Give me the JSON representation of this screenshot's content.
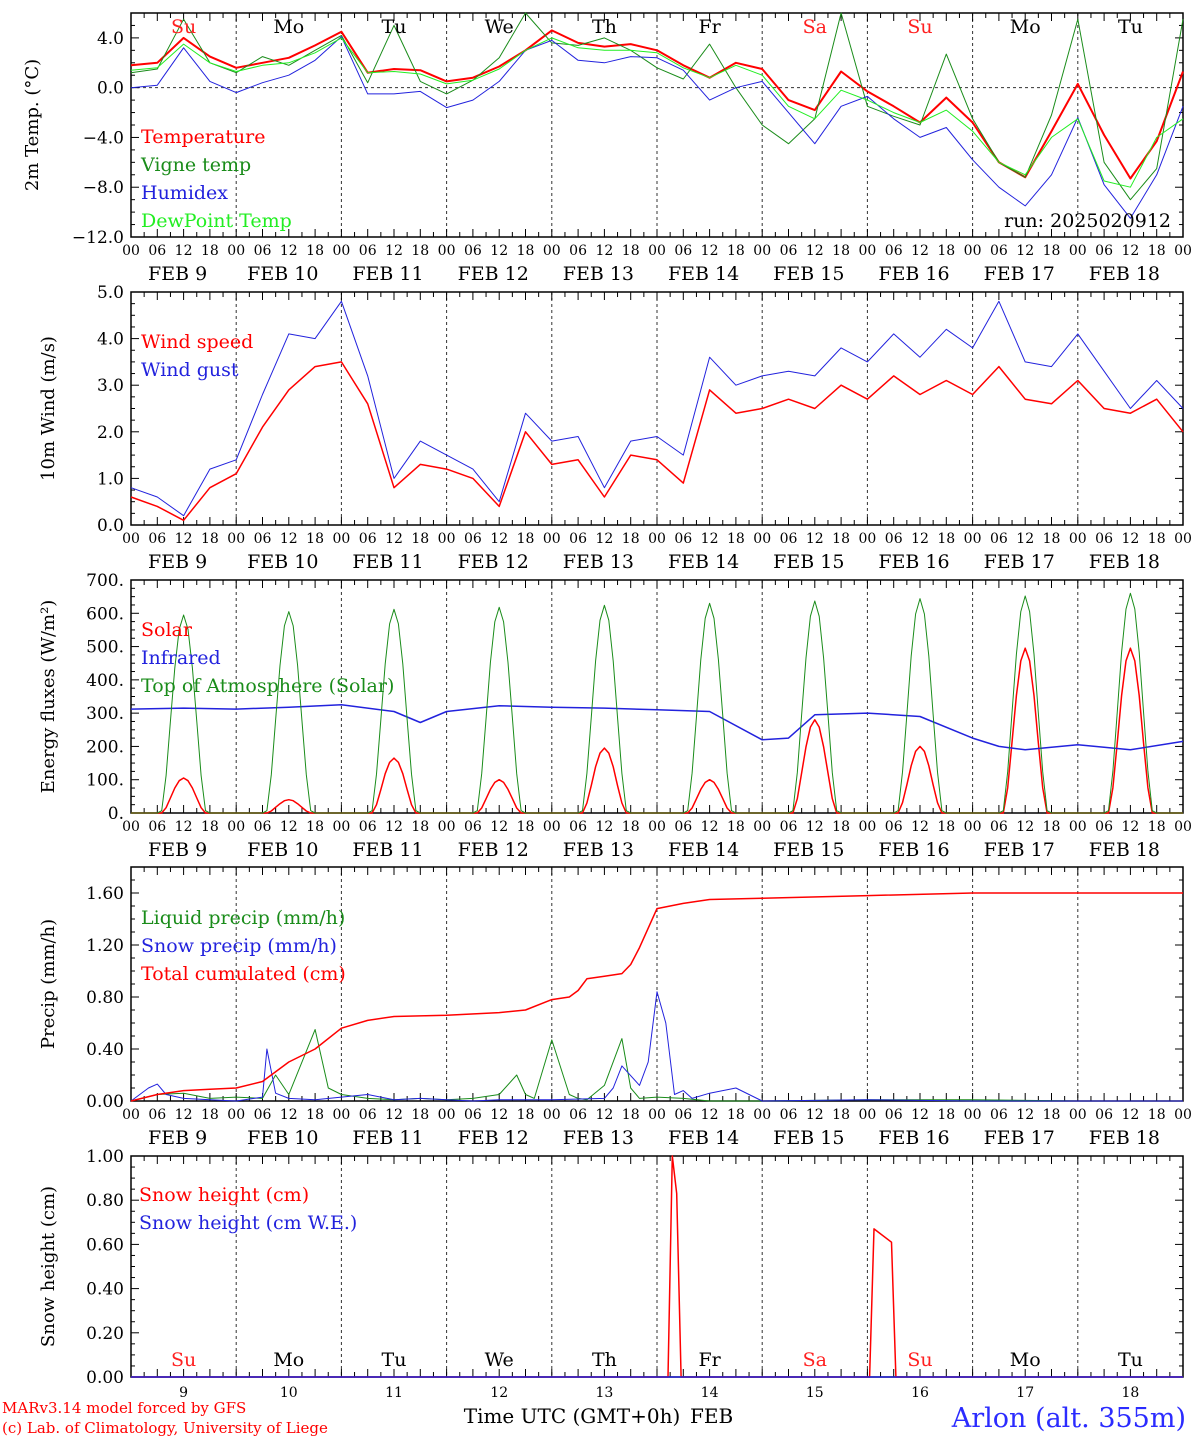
{
  "time_axis": {
    "hour_ticks": [
      "00",
      "06",
      "12",
      "18"
    ],
    "final_tick": "00",
    "date_labels": [
      "FEB  9",
      "FEB 10",
      "FEB 11",
      "FEB 12",
      "FEB 13",
      "FEB 14",
      "FEB 15",
      "FEB 16",
      "FEB 17",
      "FEB 18"
    ],
    "day_numbers": [
      "9",
      "10",
      "11",
      "12",
      "13",
      "14",
      "15",
      "16",
      "17",
      "18"
    ],
    "weekdays": [
      "Su",
      "Mo",
      "Tu",
      "We",
      "Th",
      "Fr",
      "Sa",
      "Su",
      "Mo",
      "Tu"
    ],
    "weekend_days": [
      0,
      6,
      7
    ],
    "weekend_color": "#ff2020",
    "weekday_color": "#000000",
    "xlabel": "Time UTC (GMT+0h)",
    "month": "FEB"
  },
  "footer": {
    "model_line": "MARv3.14 model forced by GFS",
    "credit_line": "(c) Lab. of Climatology, University of Liege",
    "station": "Arlon (alt. 355m)"
  },
  "colors": {
    "red": "#ff0000",
    "green": "#1a8c1a",
    "blue": "#2222dd",
    "lightgreen": "#22ee22"
  },
  "chart_data": [
    {
      "id": "temperature",
      "type": "line",
      "ylabel": "2m Temp. (°C)",
      "ylim": [
        -12,
        6
      ],
      "ytick_values": [
        -12,
        -8,
        -4,
        0,
        4
      ],
      "ytick_labels": [
        "−12.0",
        "−8.0",
        "−4.0",
        "0.0",
        "4.0"
      ],
      "zero_line": true,
      "annotation": "run: 2025020912",
      "show_weekdays_top": true,
      "x_unit": "hours since Feb 9 00 UTC",
      "series": [
        {
          "name": "Temperature",
          "color": "#ff0000",
          "width": 2,
          "x": [
            0,
            6,
            12,
            18,
            24,
            30,
            36,
            42,
            48,
            54,
            60,
            66,
            72,
            78,
            84,
            90,
            96,
            102,
            108,
            114,
            120,
            126,
            132,
            138,
            144,
            150,
            156,
            162,
            168,
            174,
            180,
            186,
            192,
            198,
            204,
            210,
            216,
            222,
            228,
            234,
            240
          ],
          "y": [
            1.8,
            2.0,
            4.0,
            2.5,
            1.6,
            2.0,
            2.4,
            3.4,
            4.5,
            1.2,
            1.5,
            1.4,
            0.5,
            0.8,
            1.7,
            3.0,
            4.6,
            3.6,
            3.3,
            3.5,
            3.0,
            1.8,
            0.8,
            2.0,
            1.5,
            -1.0,
            -1.8,
            1.3,
            -0.3,
            -1.5,
            -2.8,
            -0.8,
            -2.8,
            -6.0,
            -7.2,
            -3.5,
            0.3,
            -3.8,
            -7.3,
            -4.3,
            1.3
          ]
        },
        {
          "name": "Vigne temp",
          "color": "#1a8c1a",
          "width": 1,
          "x": [
            0,
            6,
            12,
            18,
            24,
            30,
            36,
            42,
            48,
            54,
            60,
            66,
            72,
            78,
            84,
            90,
            96,
            102,
            108,
            114,
            120,
            126,
            132,
            138,
            144,
            150,
            156,
            162,
            168,
            174,
            180,
            186,
            192,
            198,
            204,
            210,
            216,
            222,
            228,
            234,
            240
          ],
          "y": [
            1.2,
            1.5,
            5.5,
            2.0,
            1.2,
            2.5,
            1.8,
            3.0,
            4.2,
            0.4,
            5.0,
            0.5,
            -0.5,
            0.6,
            2.4,
            6.0,
            3.6,
            3.4,
            4.0,
            3.0,
            1.6,
            0.7,
            3.5,
            0.0,
            -3.0,
            -4.5,
            -2.5,
            6.0,
            -1.5,
            -2.3,
            -3.0,
            2.7,
            -2.5,
            -6.0,
            -7.2,
            -2.2,
            5.5,
            -6.0,
            -9.0,
            -6.5,
            5.5
          ]
        },
        {
          "name": "Humidex",
          "color": "#2222dd",
          "width": 1,
          "x": [
            0,
            6,
            12,
            18,
            24,
            30,
            36,
            42,
            48,
            54,
            60,
            66,
            72,
            78,
            84,
            90,
            96,
            102,
            108,
            114,
            120,
            126,
            132,
            138,
            144,
            150,
            156,
            162,
            168,
            174,
            180,
            186,
            192,
            198,
            204,
            210,
            216,
            222,
            228,
            234,
            240
          ],
          "y": [
            0.0,
            0.2,
            3.2,
            0.5,
            -0.4,
            0.4,
            1.0,
            2.2,
            4.1,
            -0.5,
            -0.5,
            -0.3,
            -1.6,
            -1.0,
            0.5,
            3.0,
            3.8,
            2.2,
            2.0,
            2.5,
            2.4,
            1.4,
            -1.0,
            0.0,
            0.5,
            -2.0,
            -4.5,
            -1.5,
            -0.7,
            -2.5,
            -4.0,
            -3.2,
            -5.8,
            -8.0,
            -9.5,
            -7.0,
            -2.4,
            -7.8,
            -10.5,
            -7.0,
            -1.5
          ]
        },
        {
          "name": "DewPoint Temp",
          "color": "#22ee22",
          "width": 1,
          "x": [
            0,
            6,
            12,
            18,
            24,
            30,
            36,
            42,
            48,
            54,
            60,
            66,
            72,
            78,
            84,
            90,
            96,
            102,
            108,
            114,
            120,
            126,
            132,
            138,
            144,
            150,
            156,
            162,
            168,
            174,
            180,
            186,
            192,
            198,
            204,
            210,
            216,
            222,
            228,
            234,
            240
          ],
          "y": [
            1.4,
            1.6,
            3.5,
            2.0,
            1.3,
            1.8,
            2.0,
            2.8,
            4.0,
            1.2,
            1.3,
            1.1,
            0.3,
            0.6,
            1.5,
            3.0,
            4.0,
            3.2,
            3.0,
            3.0,
            2.8,
            1.6,
            0.8,
            1.8,
            1.0,
            -1.5,
            -2.5,
            -0.2,
            -1.0,
            -2.0,
            -2.8,
            -1.8,
            -3.5,
            -6.0,
            -7.0,
            -4.0,
            -2.5,
            -7.5,
            -8.0,
            -4.0,
            -2.5
          ]
        }
      ]
    },
    {
      "id": "wind",
      "type": "line",
      "ylabel": "10m Wind (m/s)",
      "ylim": [
        0,
        5
      ],
      "ytick_values": [
        0,
        1,
        2,
        3,
        4,
        5
      ],
      "ytick_labels": [
        "0.0",
        "1.0",
        "2.0",
        "3.0",
        "4.0",
        "5.0"
      ],
      "x_unit": "hours since Feb 9 00 UTC",
      "series": [
        {
          "name": "Wind speed",
          "color": "#ff0000",
          "width": 1.5,
          "x": [
            0,
            6,
            12,
            18,
            24,
            30,
            36,
            42,
            48,
            54,
            60,
            66,
            72,
            78,
            84,
            90,
            96,
            102,
            108,
            114,
            120,
            126,
            132,
            138,
            144,
            150,
            156,
            162,
            168,
            174,
            180,
            186,
            192,
            198,
            204,
            210,
            216,
            222,
            228,
            234,
            240
          ],
          "y": [
            0.6,
            0.4,
            0.1,
            0.8,
            1.1,
            2.1,
            2.9,
            3.4,
            3.5,
            2.6,
            0.8,
            1.3,
            1.2,
            1.0,
            0.4,
            2.0,
            1.3,
            1.4,
            0.6,
            1.5,
            1.4,
            0.9,
            2.9,
            2.4,
            2.5,
            2.7,
            2.5,
            3.0,
            2.7,
            3.2,
            2.8,
            3.1,
            2.8,
            3.4,
            2.7,
            2.6,
            3.1,
            2.5,
            2.4,
            2.7,
            2.0
          ]
        },
        {
          "name": "Wind gust",
          "color": "#2222dd",
          "width": 1,
          "x": [
            0,
            6,
            12,
            18,
            24,
            30,
            36,
            42,
            48,
            54,
            60,
            66,
            72,
            78,
            84,
            90,
            96,
            102,
            108,
            114,
            120,
            126,
            132,
            138,
            144,
            150,
            156,
            162,
            168,
            174,
            180,
            186,
            192,
            198,
            204,
            210,
            216,
            222,
            228,
            234,
            240
          ],
          "y": [
            0.8,
            0.6,
            0.2,
            1.2,
            1.4,
            2.8,
            4.1,
            4.0,
            4.8,
            3.2,
            1.0,
            1.8,
            1.5,
            1.2,
            0.5,
            2.4,
            1.8,
            1.9,
            0.8,
            1.8,
            1.9,
            1.5,
            3.6,
            3.0,
            3.2,
            3.3,
            3.2,
            3.8,
            3.5,
            4.1,
            3.6,
            4.2,
            3.8,
            4.8,
            3.5,
            3.4,
            4.1,
            3.3,
            2.5,
            3.1,
            2.5
          ]
        }
      ]
    },
    {
      "id": "energy",
      "type": "line",
      "ylabel": "Energy fluxes (W/m²)",
      "ylim": [
        0,
        700
      ],
      "ytick_values": [
        0,
        100,
        200,
        300,
        400,
        500,
        600,
        700
      ],
      "ytick_labels": [
        "0.",
        "100.",
        "200.",
        "300.",
        "400.",
        "500.",
        "600.",
        "700."
      ],
      "x_unit": "hours since Feb 9 00 UTC",
      "daily_peaks": {
        "Solar": [
          105,
          40,
          165,
          100,
          195,
          100,
          280,
          200,
          495,
          495
        ],
        "Top of Atmosphere (Solar)": [
          595,
          605,
          612,
          618,
          624,
          630,
          637,
          644,
          652,
          660
        ]
      },
      "series": [
        {
          "name": "Solar",
          "color": "#ff0000",
          "width": 1.5,
          "x": [],
          "y": []
        },
        {
          "name": "Infrared",
          "color": "#2222dd",
          "width": 1.5,
          "x": [
            0,
            12,
            24,
            36,
            48,
            60,
            66,
            72,
            84,
            96,
            108,
            120,
            132,
            144,
            150,
            156,
            168,
            180,
            192,
            198,
            204,
            216,
            228,
            240
          ],
          "y": [
            312,
            315,
            312,
            318,
            325,
            305,
            272,
            305,
            322,
            318,
            315,
            310,
            305,
            220,
            225,
            295,
            300,
            290,
            225,
            200,
            190,
            205,
            190,
            215
          ]
        },
        {
          "name": "Top of Atmosphere (Solar)",
          "color": "#1a8c1a",
          "width": 1,
          "x": [],
          "y": []
        }
      ]
    },
    {
      "id": "precip",
      "type": "line",
      "ylabel": "Precip (mm/h)",
      "ylim": [
        0,
        1.8
      ],
      "ytick_values": [
        0,
        0.4,
        0.8,
        1.2,
        1.6
      ],
      "ytick_labels": [
        "0.00",
        "0.40",
        "0.80",
        "1.20",
        "1.60"
      ],
      "x_unit": "hours since Feb 9 00 UTC",
      "series": [
        {
          "name": "Liquid precip (mm/h)",
          "color": "#1a8c1a",
          "width": 1,
          "x": [
            0,
            6,
            12,
            18,
            24,
            30,
            33,
            36,
            42,
            45,
            48,
            54,
            60,
            66,
            72,
            78,
            84,
            88,
            90,
            92,
            96,
            100,
            102,
            104,
            108,
            112,
            114,
            116,
            120,
            126,
            132,
            144,
            168,
            192,
            216,
            240
          ],
          "y": [
            0,
            0.05,
            0.06,
            0.02,
            0.03,
            0.02,
            0.2,
            0.05,
            0.55,
            0.1,
            0.05,
            0.02,
            0.01,
            0.02,
            0.01,
            0.02,
            0.05,
            0.2,
            0.05,
            0.02,
            0.47,
            0.05,
            0.02,
            0.01,
            0.12,
            0.48,
            0.1,
            0.02,
            0.03,
            0.02,
            0.0,
            0.0,
            0.01,
            0.01,
            0.0,
            0.0
          ]
        },
        {
          "name": "Snow precip (mm/h)",
          "color": "#2222dd",
          "width": 1,
          "x": [
            0,
            4,
            6,
            8,
            12,
            18,
            24,
            30,
            31,
            33,
            36,
            42,
            48,
            54,
            60,
            66,
            72,
            78,
            84,
            96,
            108,
            110,
            112,
            116,
            118,
            120,
            122,
            124,
            126,
            128,
            132,
            138,
            144,
            168,
            192,
            216,
            240
          ],
          "y": [
            0,
            0.1,
            0.13,
            0.05,
            0.02,
            0.01,
            0.0,
            0.03,
            0.4,
            0.06,
            0.02,
            0.01,
            0.03,
            0.05,
            0.01,
            0.02,
            0.01,
            0.0,
            0.01,
            0.01,
            0.02,
            0.1,
            0.27,
            0.12,
            0.3,
            0.84,
            0.6,
            0.05,
            0.08,
            0.02,
            0.06,
            0.1,
            0.0,
            0.01,
            0.0,
            0.0,
            0.0
          ]
        },
        {
          "name": "Total cumulated (cm)",
          "color": "#ff0000",
          "width": 1.5,
          "x": [
            0,
            6,
            12,
            18,
            24,
            30,
            36,
            42,
            48,
            54,
            60,
            72,
            84,
            90,
            96,
            100,
            102,
            104,
            108,
            112,
            114,
            116,
            120,
            126,
            132,
            144,
            168,
            192,
            216,
            240
          ],
          "y": [
            0,
            0.05,
            0.08,
            0.09,
            0.1,
            0.15,
            0.3,
            0.4,
            0.56,
            0.62,
            0.65,
            0.66,
            0.68,
            0.7,
            0.78,
            0.8,
            0.85,
            0.94,
            0.96,
            0.98,
            1.05,
            1.18,
            1.48,
            1.52,
            1.55,
            1.56,
            1.58,
            1.6,
            1.6,
            1.6
          ]
        }
      ]
    },
    {
      "id": "snow",
      "type": "line",
      "ylabel": "Snow height (cm)",
      "ylim": [
        0,
        1
      ],
      "ytick_values": [
        0,
        0.2,
        0.4,
        0.6,
        0.8,
        1.0
      ],
      "ytick_labels": [
        "0.00",
        "0.20",
        "0.40",
        "0.60",
        "0.80",
        "1.00"
      ],
      "x_unit": "hours since Feb 9 00 UTC",
      "weekdays_bottom": true,
      "series": [
        {
          "name": "Snow height (cm)",
          "color": "#ff0000",
          "width": 1.5,
          "x": [
            0,
            122.5,
            123.5,
            124.5,
            125.5,
            168.5,
            169.5,
            173.5,
            174.5,
            240
          ],
          "y": [
            0,
            0,
            1.0,
            0.83,
            0,
            0,
            0.67,
            0.61,
            0,
            0
          ]
        },
        {
          "name": "Snow height (cm W.E.)",
          "color": "#2222dd",
          "width": 1.5,
          "x": [
            0,
            240
          ],
          "y": [
            0,
            0
          ]
        }
      ]
    }
  ]
}
